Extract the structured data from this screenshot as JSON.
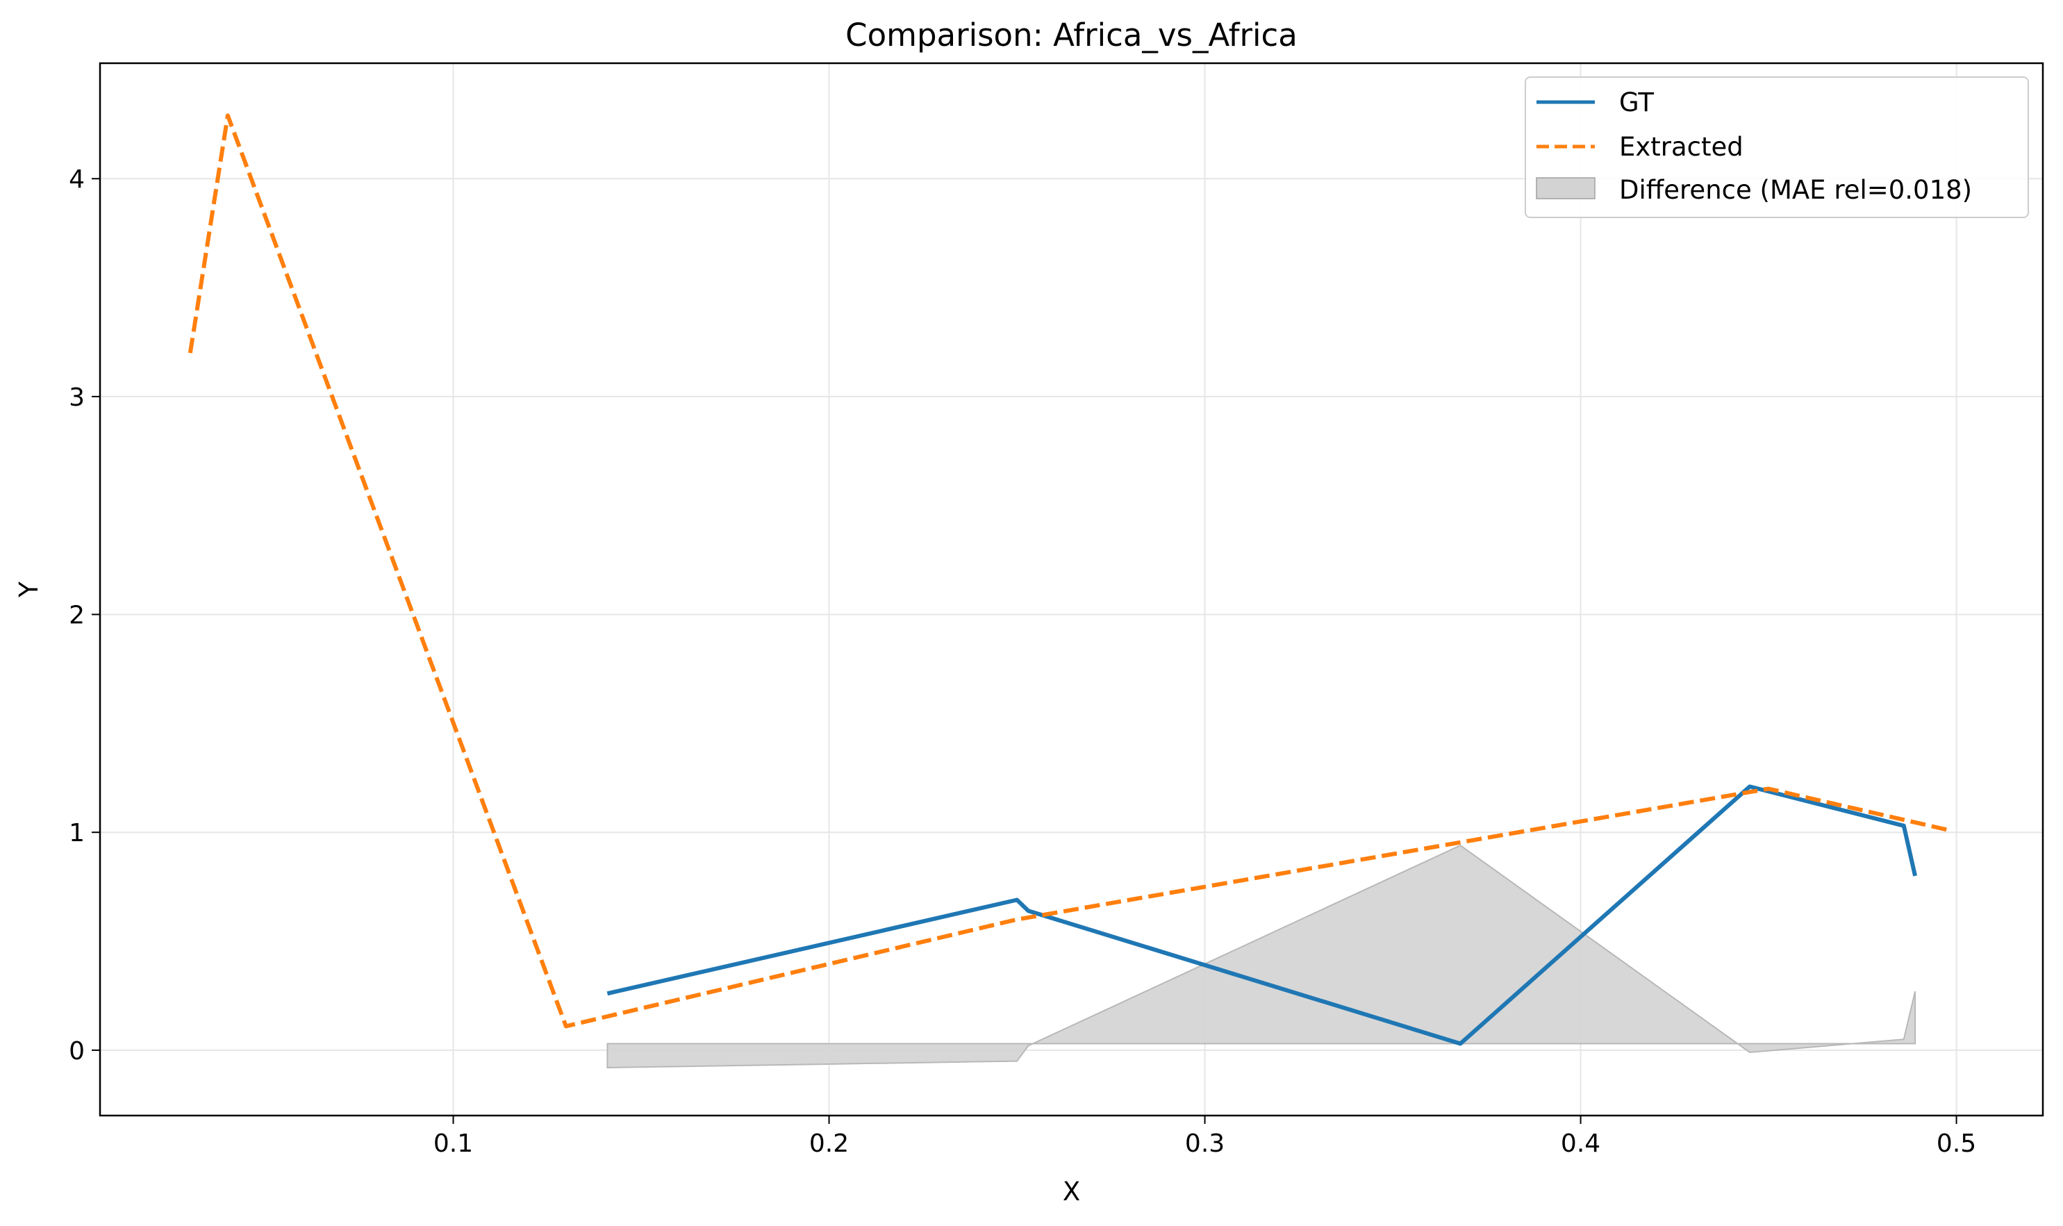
{
  "chart_data": {
    "type": "line",
    "title": "Comparison: Africa_vs_Africa",
    "xlabel": "X",
    "ylabel": "Y",
    "xlim": [
      0.006,
      0.523
    ],
    "ylim": [
      -0.3,
      4.53
    ],
    "xticks": [
      0.1,
      0.2,
      0.3,
      0.4,
      0.5
    ],
    "xtick_labels": [
      "0.1",
      "0.2",
      "0.3",
      "0.4",
      "0.5"
    ],
    "yticks": [
      0,
      1,
      2,
      3,
      4
    ],
    "ytick_labels": [
      "0",
      "1",
      "2",
      "3",
      "4"
    ],
    "grid": true,
    "legend_position": "top-right",
    "series": [
      {
        "name": "GT",
        "color": "#1f77b4",
        "style": "solid",
        "x": [
          0.141,
          0.25,
          0.253,
          0.368,
          0.445,
          0.486,
          0.489
        ],
        "y": [
          0.26,
          0.69,
          0.64,
          0.03,
          1.21,
          1.03,
          0.8
        ]
      },
      {
        "name": "Extracted",
        "color": "#ff7f0e",
        "style": "dashed",
        "x": [
          0.03,
          0.04,
          0.13,
          0.25,
          0.37,
          0.45,
          0.498
        ],
        "y": [
          3.2,
          4.29,
          0.11,
          0.6,
          0.96,
          1.2,
          1.01
        ]
      }
    ],
    "difference_band": {
      "name": "Difference (MAE rel=0.018)",
      "color": "#d3d3d3",
      "x": [
        0.141,
        0.25,
        0.253,
        0.368,
        0.445,
        0.486,
        0.489
      ],
      "y": [
        -0.08,
        -0.05,
        0.02,
        0.94,
        -0.01,
        0.05,
        0.27
      ],
      "baseline": 0.03
    }
  }
}
